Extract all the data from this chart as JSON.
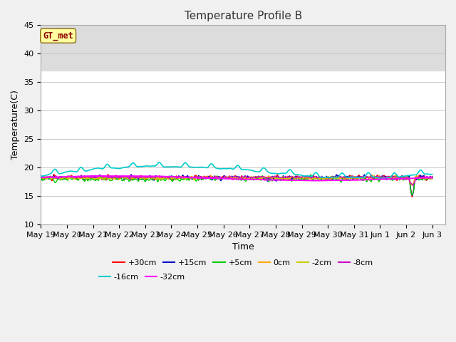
{
  "title": "Temperature Profile B",
  "xlabel": "Time",
  "ylabel": "Temperature(C)",
  "ylim": [
    10,
    45
  ],
  "xlim_days": 15.5,
  "annotation_text": "GT_met",
  "annotation_color": "#8B0000",
  "annotation_bg": "#FFFFA0",
  "annotation_border": "#8B6914",
  "shaded_region": [
    37.0,
    45.0
  ],
  "shaded_color": "#DCDCDC",
  "grid_color": "#C8C8C8",
  "series": [
    {
      "label": "+30cm",
      "color": "#FF0000",
      "lw": 1.0
    },
    {
      "label": "+15cm",
      "color": "#0000CC",
      "lw": 1.0
    },
    {
      "label": "+5cm",
      "color": "#00CC00",
      "lw": 1.0
    },
    {
      "label": "0cm",
      "color": "#FFA500",
      "lw": 1.0
    },
    {
      "label": "-2cm",
      "color": "#CCCC00",
      "lw": 1.0
    },
    {
      "label": "-8cm",
      "color": "#CC00CC",
      "lw": 1.0
    },
    {
      "label": "-16cm",
      "color": "#00CCCC",
      "lw": 1.2
    },
    {
      "label": "-32cm",
      "color": "#FF00FF",
      "lw": 1.4
    }
  ],
  "xtick_labels": [
    "May 19",
    "May 20",
    "May 21",
    "May 22",
    "May 23",
    "May 24",
    "May 25",
    "May 26",
    "May 27",
    "May 28",
    "May 29",
    "May 30",
    "May 31",
    "Jun 1",
    "Jun 2",
    "Jun 3"
  ],
  "xtick_positions": [
    0,
    1,
    2,
    3,
    4,
    5,
    6,
    7,
    8,
    9,
    10,
    11,
    12,
    13,
    14,
    15
  ],
  "ytick_labels": [
    "10",
    "15",
    "20",
    "25",
    "30",
    "35",
    "40",
    "45"
  ],
  "ytick_positions": [
    10,
    15,
    20,
    25,
    30,
    35,
    40,
    45
  ],
  "bg_color": "#F0F0F0",
  "plot_bg": "#FFFFFF",
  "title_fontsize": 11,
  "axis_fontsize": 9,
  "tick_fontsize": 8
}
